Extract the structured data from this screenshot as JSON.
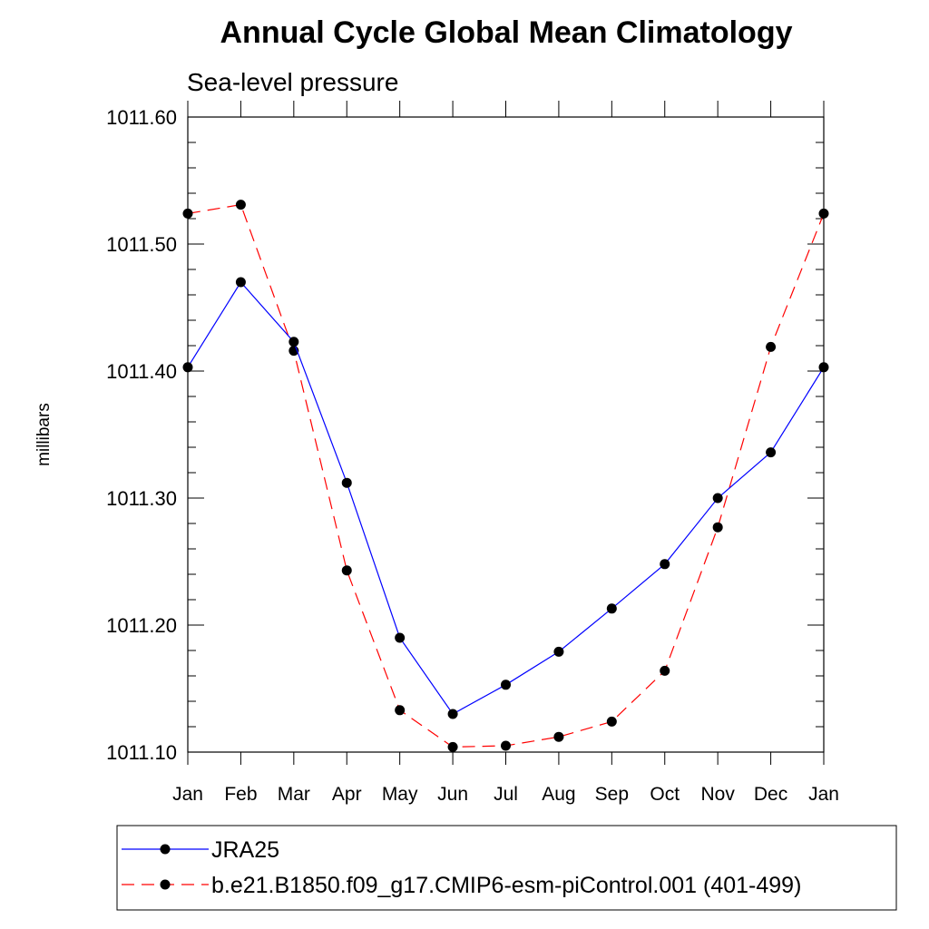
{
  "chart_data": {
    "type": "line",
    "title": "Annual Cycle Global Mean Climatology",
    "subtitle": "Sea-level pressure",
    "xlabel": "",
    "ylabel": "millibars",
    "categories": [
      "Jan",
      "Feb",
      "Mar",
      "Apr",
      "May",
      "Jun",
      "Jul",
      "Aug",
      "Sep",
      "Oct",
      "Nov",
      "Dec",
      "Jan"
    ],
    "ylim": [
      1011.1,
      1011.6
    ],
    "y_ticks": [
      1011.1,
      1011.2,
      1011.3,
      1011.4,
      1011.5,
      1011.6
    ],
    "y_tick_labels": [
      "1011.10",
      "1011.20",
      "1011.30",
      "1011.40",
      "1011.50",
      "1011.60"
    ],
    "y_minor_step": 0.02,
    "grid": false,
    "legend_position": "bottom",
    "series": [
      {
        "name": "JRA25",
        "color": "#0000ff",
        "line_style": "solid",
        "marker": "filled-circle",
        "values": [
          1011.403,
          1011.47,
          1011.423,
          1011.312,
          1011.19,
          1011.13,
          1011.153,
          1011.179,
          1011.213,
          1011.248,
          1011.3,
          1011.336,
          1011.403
        ]
      },
      {
        "name": "b.e21.B1850.f09_g17.CMIP6-esm-piControl.001 (401-499)",
        "color": "#ff0000",
        "line_style": "dashed",
        "marker": "filled-circle",
        "values": [
          1011.524,
          1011.531,
          1011.416,
          1011.243,
          1011.133,
          1011.104,
          1011.105,
          1011.112,
          1011.124,
          1011.164,
          1011.277,
          1011.419,
          1011.524
        ]
      }
    ]
  }
}
